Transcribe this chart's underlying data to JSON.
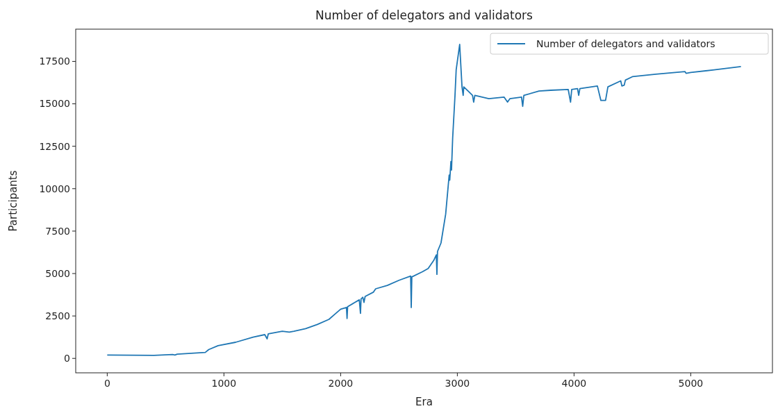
{
  "chart_data": {
    "type": "line",
    "title": "Number of delegators and validators",
    "xlabel": "Era",
    "ylabel": "Participants",
    "xlim": [
      -270,
      5700
    ],
    "ylim": [
      -850,
      19400
    ],
    "xticks": [
      0,
      1000,
      2000,
      3000,
      4000,
      5000
    ],
    "yticks": [
      0,
      2500,
      5000,
      7500,
      10000,
      12500,
      15000,
      17500
    ],
    "grid": false,
    "legend": "top right",
    "series": [
      {
        "name": "Number of delegators and validators",
        "color": "#1f77b4",
        "x": [
          0,
          400,
          560,
          580,
          600,
          840,
          870,
          950,
          1100,
          1250,
          1350,
          1370,
          1380,
          1500,
          1560,
          1600,
          1700,
          1800,
          1900,
          1950,
          2000,
          2050,
          2055,
          2060,
          2160,
          2170,
          2175,
          2190,
          2200,
          2210,
          2280,
          2300,
          2400,
          2500,
          2600,
          2605,
          2610,
          2700,
          2750,
          2800,
          2820,
          2825,
          2830,
          2860,
          2900,
          2930,
          2935,
          2945,
          2950,
          2960,
          2980,
          2990,
          3000,
          3020,
          3040,
          3050,
          3055,
          3100,
          3130,
          3140,
          3150,
          3270,
          3400,
          3430,
          3450,
          3550,
          3560,
          3570,
          3700,
          3800,
          3950,
          3970,
          3980,
          4030,
          4040,
          4050,
          4200,
          4230,
          4270,
          4290,
          4400,
          4410,
          4430,
          4440,
          4500,
          4700,
          4950,
          4960,
          5000,
          5200,
          5430
        ],
        "values": [
          200,
          180,
          230,
          200,
          250,
          350,
          520,
          750,
          950,
          1250,
          1400,
          1150,
          1450,
          1600,
          1550,
          1600,
          1750,
          2000,
          2300,
          2600,
          2900,
          3000,
          2350,
          3050,
          3450,
          2650,
          3500,
          3600,
          3300,
          3650,
          3900,
          4100,
          4300,
          4600,
          4850,
          3000,
          4800,
          5100,
          5300,
          5800,
          6100,
          4950,
          6300,
          6800,
          8500,
          10800,
          10500,
          11600,
          11100,
          13000,
          15500,
          17000,
          17500,
          18500,
          16000,
          15500,
          16000,
          15700,
          15500,
          15100,
          15500,
          15300,
          15400,
          15100,
          15300,
          15400,
          14850,
          15500,
          15750,
          15800,
          15850,
          15100,
          15850,
          15900,
          15500,
          15900,
          16050,
          15200,
          15200,
          16000,
          16350,
          16050,
          16100,
          16400,
          16600,
          16750,
          16900,
          16800,
          16850,
          17000,
          17200
        ]
      }
    ]
  }
}
